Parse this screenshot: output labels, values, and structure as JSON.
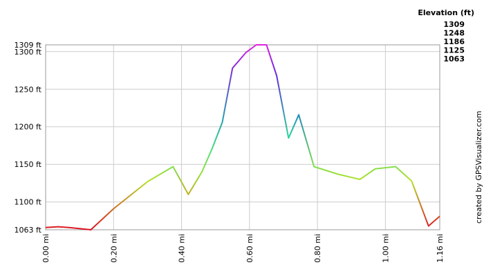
{
  "chart_data": {
    "type": "line",
    "x": [
      0,
      0.037,
      0.069,
      0.133,
      0.2,
      0.3,
      0.375,
      0.42,
      0.46,
      0.49,
      0.52,
      0.55,
      0.59,
      0.62,
      0.65,
      0.68,
      0.715,
      0.745,
      0.79,
      0.86,
      0.925,
      0.97,
      1.03,
      1.077,
      1.127,
      1.16
    ],
    "values": [
      1066,
      1067,
      1066,
      1063,
      1091,
      1127,
      1147,
      1110,
      1140,
      1171,
      1206,
      1278,
      1299,
      1309,
      1309,
      1268,
      1185,
      1216,
      1147,
      1137,
      1130,
      1144,
      1147,
      1128,
      1068,
      1081
    ],
    "xlim": [
      0,
      1.16
    ],
    "ylim": [
      1063,
      1309
    ],
    "xticks": [
      {
        "value": 0,
        "label": "0.00 mi"
      },
      {
        "value": 0.2,
        "label": "0.20 mi"
      },
      {
        "value": 0.4,
        "label": "0.40 mi"
      },
      {
        "value": 0.6,
        "label": "0.60 mi"
      },
      {
        "value": 0.8,
        "label": "0.80 mi"
      },
      {
        "value": 1.0,
        "label": "1.00 mi"
      },
      {
        "value": 1.16,
        "label": "1.16 mi"
      }
    ],
    "yticks": [
      {
        "value": 1063,
        "label": "1063 ft"
      },
      {
        "value": 1100,
        "label": "1100 ft"
      },
      {
        "value": 1150,
        "label": "1150 ft"
      },
      {
        "value": 1200,
        "label": "1200 ft"
      },
      {
        "value": 1250,
        "label": "1250 ft"
      },
      {
        "value": 1300,
        "label": "1300 ft"
      },
      {
        "value": 1309,
        "label": "1309 ft"
      }
    ],
    "grid": true,
    "legend": {
      "title": "Elevation (ft)",
      "values": [
        1309,
        1248,
        1186,
        1125,
        1063
      ],
      "colors": [
        "#dd22dd",
        "#2233dd",
        "#22dd99",
        "#bbe022",
        "#dd1122"
      ]
    },
    "credit": "created by GPSVisualizer.com"
  }
}
